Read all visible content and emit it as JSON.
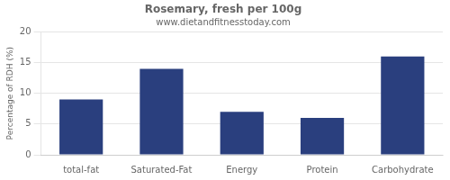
{
  "chart_data": {
    "type": "bar",
    "title": "Rosemary, fresh per 100g",
    "subtitle": "www.dietandfitnesstoday.com",
    "ylabel": "Percentage of RDH (%)",
    "categories": [
      "total-fat",
      "Saturated-Fat",
      "Energy",
      "Protein",
      "Carbohydrate"
    ],
    "values": [
      9,
      14,
      7,
      6,
      16
    ],
    "color": "#2a3f7e",
    "ylim": [
      0,
      20
    ],
    "yticks": [
      0,
      5,
      10,
      15,
      20
    ],
    "grid": true
  }
}
